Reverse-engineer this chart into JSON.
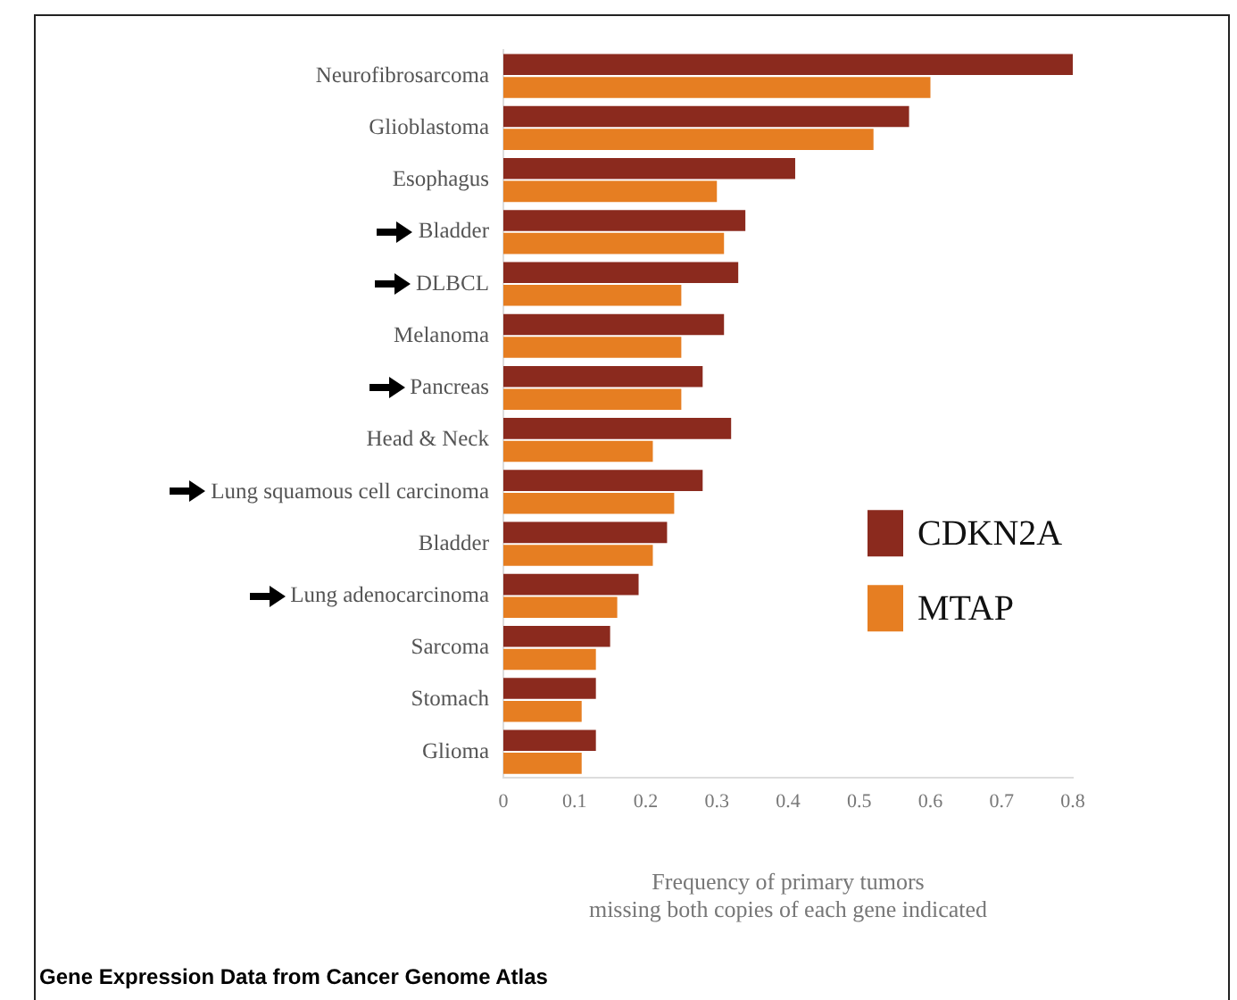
{
  "chart_data": {
    "type": "bar",
    "orientation": "horizontal",
    "categories": [
      "Neurofibrosarcoma",
      "Glioblastoma",
      "Esophagus",
      "Bladder",
      "DLBCL",
      "Melanoma",
      "Pancreas",
      "Head & Neck",
      "Lung squamous cell carcinoma",
      "Bladder",
      "Lung adenocarcinoma",
      "Sarcoma",
      "Stomach",
      "Glioma"
    ],
    "series": [
      {
        "name": "CDKN2A",
        "color": "#8b2a1e",
        "values": [
          0.8,
          0.57,
          0.41,
          0.34,
          0.33,
          0.31,
          0.28,
          0.32,
          0.28,
          0.23,
          0.19,
          0.15,
          0.13,
          0.13
        ]
      },
      {
        "name": "MTAP",
        "color": "#e67e22",
        "values": [
          0.6,
          0.52,
          0.3,
          0.31,
          0.25,
          0.25,
          0.25,
          0.21,
          0.24,
          0.21,
          0.16,
          0.13,
          0.11,
          0.11
        ]
      }
    ],
    "xlim": [
      0,
      0.8
    ],
    "xticks": [
      0,
      0.1,
      0.2,
      0.3,
      0.4,
      0.5,
      0.6,
      0.7,
      0.8
    ],
    "xlabel": "Frequency of primary tumors\nmissing both copies of each gene indicated",
    "legend": "bottom right",
    "grid": false,
    "annotations": [
      "Gene Expression Data from Cancer Genome Atlas"
    ]
  }
}
